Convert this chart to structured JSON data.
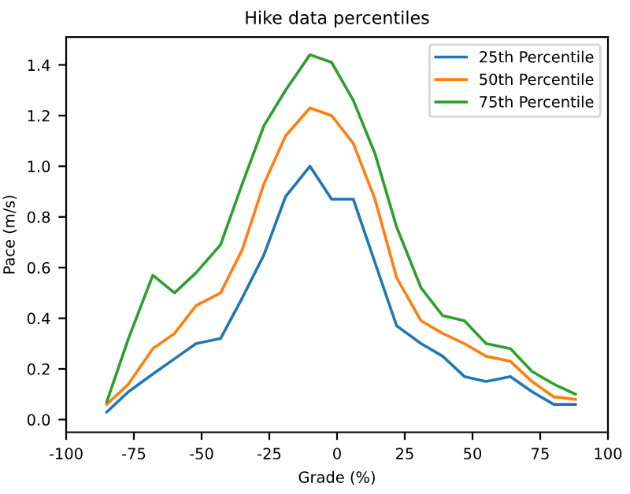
{
  "chart_data": {
    "type": "line",
    "title": "Hike data percentiles",
    "xlabel": "Grade (%)",
    "ylabel": "Pace (m/s)",
    "x": [
      -85,
      -77,
      -68,
      -60,
      -52,
      -43,
      -35,
      -27,
      -19,
      -10,
      -2,
      6,
      14,
      22,
      31,
      39,
      47,
      55,
      64,
      72,
      80,
      88
    ],
    "series": [
      {
        "name": "25th Percentile",
        "color": "#1f77b4",
        "values": [
          0.03,
          0.11,
          0.18,
          0.24,
          0.3,
          0.32,
          0.48,
          0.65,
          0.88,
          1.0,
          0.87,
          0.87,
          0.62,
          0.37,
          0.3,
          0.25,
          0.17,
          0.15,
          0.17,
          0.11,
          0.06,
          0.06
        ]
      },
      {
        "name": "50th Percentile",
        "color": "#ff7f0e",
        "values": [
          0.06,
          0.14,
          0.28,
          0.34,
          0.45,
          0.5,
          0.67,
          0.93,
          1.12,
          1.23,
          1.2,
          1.09,
          0.87,
          0.56,
          0.39,
          0.34,
          0.3,
          0.25,
          0.23,
          0.15,
          0.09,
          0.08
        ]
      },
      {
        "name": "75th Percentile",
        "color": "#2ca02c",
        "values": [
          0.07,
          0.32,
          0.57,
          0.5,
          0.58,
          0.69,
          0.93,
          1.16,
          1.3,
          1.44,
          1.41,
          1.26,
          1.05,
          0.76,
          0.52,
          0.41,
          0.39,
          0.3,
          0.28,
          0.19,
          0.14,
          0.1
        ]
      }
    ],
    "xlim": [
      -100,
      100
    ],
    "xticks": [
      -100,
      -75,
      -50,
      -25,
      0,
      25,
      50,
      75,
      100
    ],
    "ylim": [
      -0.05,
      1.51
    ],
    "yticks": [
      {
        "value": 0,
        "label": "0.0"
      },
      0.2,
      0.4,
      0.6,
      0.8,
      {
        "value": 1,
        "label": "1.0"
      },
      1.2,
      1.4
    ],
    "legend": "top right",
    "grid": false,
    "marker": "none",
    "line_style": "solid"
  }
}
